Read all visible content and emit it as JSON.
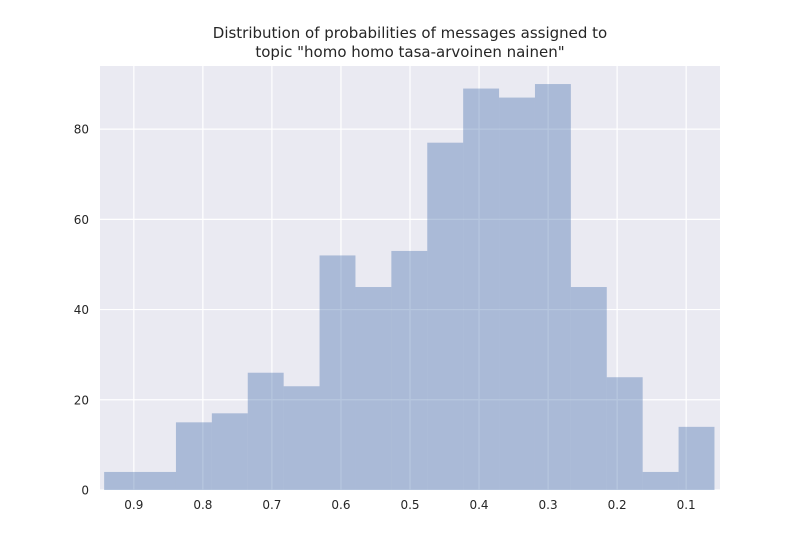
{
  "chart_data": {
    "type": "bar",
    "title_lines": [
      "Distribution of probabilities of messages assigned to",
      "topic \"homo homo tasa-arvoinen nainen\""
    ],
    "xlabel": "",
    "ylabel": "",
    "x_axis_inverted": true,
    "xlim": [
      0.949,
      0.051
    ],
    "ylim": [
      0,
      94
    ],
    "x_ticks": [
      0.9,
      0.8,
      0.7,
      0.6,
      0.5,
      0.4,
      0.3,
      0.2,
      0.1
    ],
    "x_tick_labels": [
      "0.9",
      "0.8",
      "0.7",
      "0.6",
      "0.5",
      "0.4",
      "0.3",
      "0.2",
      "0.1"
    ],
    "y_ticks": [
      0,
      20,
      40,
      60,
      80
    ],
    "y_tick_labels": [
      "0",
      "20",
      "40",
      "60",
      "80"
    ],
    "grid": true,
    "bin_edges": [
      0.943,
      0.891,
      0.839,
      0.787,
      0.735,
      0.683,
      0.631,
      0.579,
      0.527,
      0.475,
      0.423,
      0.371,
      0.319,
      0.267,
      0.215,
      0.163,
      0.111,
      0.059
    ],
    "counts": [
      4,
      4,
      15,
      17,
      26,
      23,
      52,
      45,
      53,
      77,
      89,
      87,
      90,
      45,
      25,
      4,
      14
    ],
    "bar_color": "#4c72b0",
    "bar_opacity": 0.4,
    "plot_background": "#eaeaf2",
    "grid_color": "#ffffff"
  }
}
